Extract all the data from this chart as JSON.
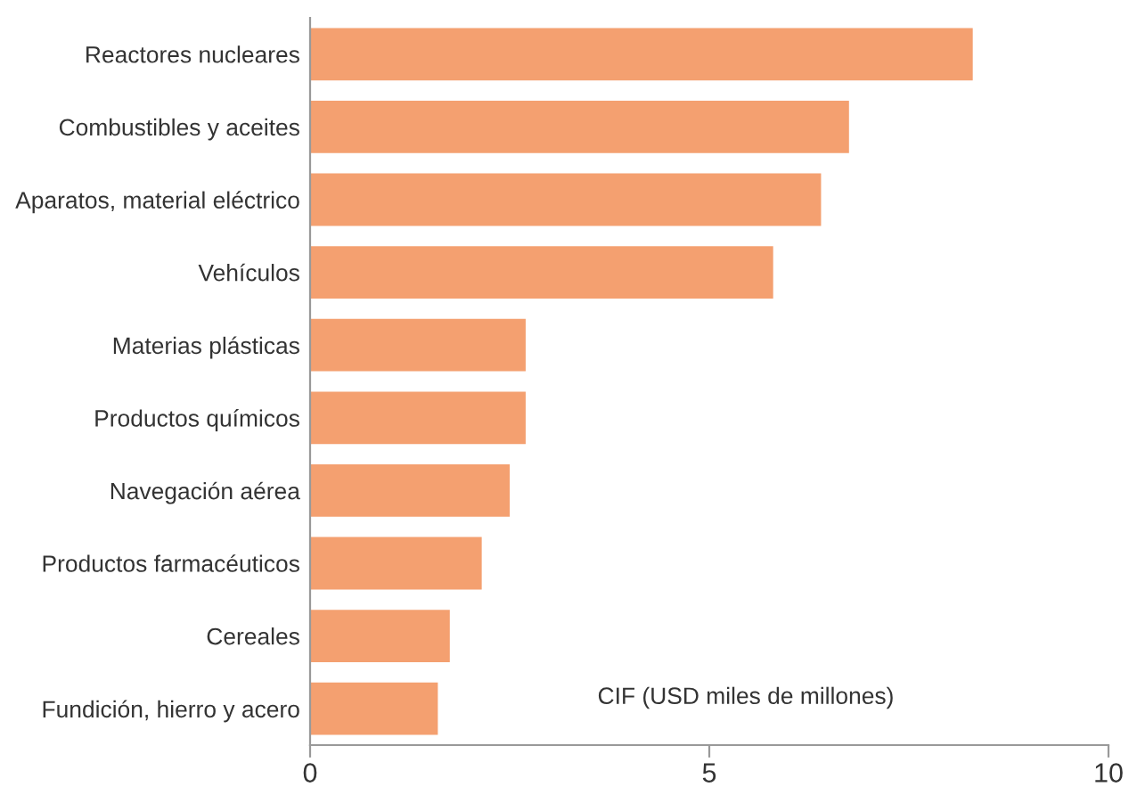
{
  "chart_data": {
    "type": "bar",
    "orientation": "horizontal",
    "xlabel": "CIF (USD miles de millones)",
    "categories": [
      "Reactores nucleares",
      "Combustibles y aceites",
      "Aparatos, material eléctrico",
      "Vehículos",
      "Materias plásticas",
      "Productos químicos",
      "Navegación aérea",
      "Productos farmacéuticos",
      "Cereales",
      "Fundición, hierro y acero"
    ],
    "values": [
      8.3,
      6.75,
      6.4,
      5.8,
      2.7,
      2.7,
      2.5,
      2.15,
      1.75,
      1.6
    ],
    "color": "#f4a070",
    "xlim": [
      0,
      10
    ],
    "xticks": [
      0,
      5,
      10
    ],
    "grid": false
  }
}
